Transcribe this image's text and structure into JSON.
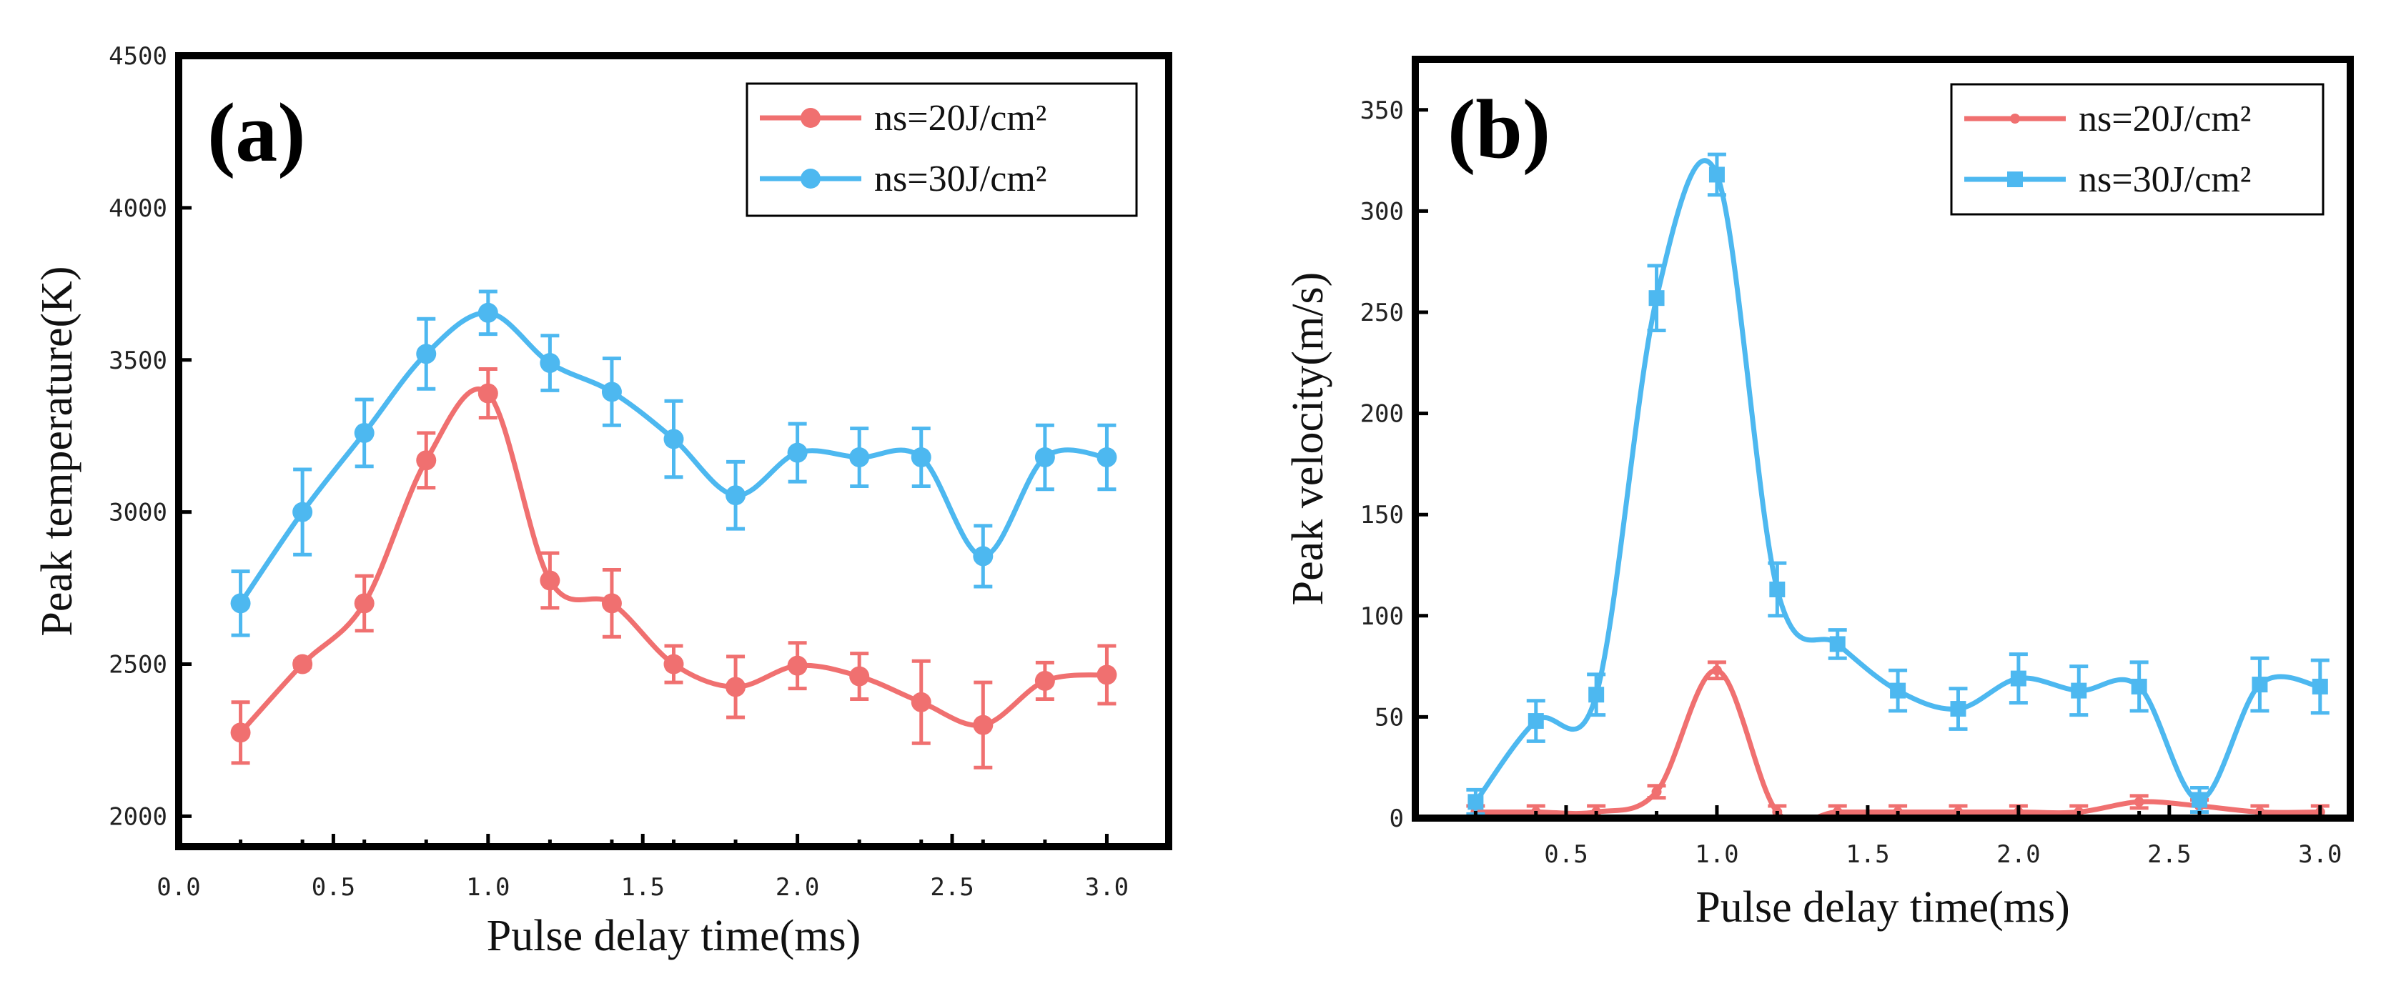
{
  "chart_data": [
    {
      "type": "line",
      "panel_label": "(a)",
      "xlabel": "Pulse delay time(ms)",
      "ylabel": "Peak temperature(K)",
      "xlim": [
        0.0,
        3.2
      ],
      "ylim": [
        1900,
        4500
      ],
      "x_ticks": [
        "0.0",
        "0.5",
        "1.0",
        "1.5",
        "2.0",
        "2.5",
        "3.0"
      ],
      "x_tick_values": [
        0.0,
        0.5,
        1.0,
        1.5,
        2.0,
        2.5,
        3.0
      ],
      "y_ticks": [
        "2000",
        "2500",
        "3000",
        "3500",
        "4000",
        "4500"
      ],
      "y_tick_values": [
        2000,
        2500,
        3000,
        3500,
        4000,
        4500
      ],
      "grid": false,
      "legend_position": "top-right",
      "x": [
        0.2,
        0.4,
        0.6,
        0.8,
        1.0,
        1.2,
        1.4,
        1.6,
        1.8,
        2.0,
        2.2,
        2.4,
        2.6,
        2.8,
        3.0
      ],
      "series": [
        {
          "name": "ns=20J/cm²",
          "color": "#f07070",
          "marker": "circle",
          "values": [
            2275,
            2500,
            2700,
            3170,
            3390,
            2775,
            2700,
            2500,
            2425,
            2495,
            2460,
            2375,
            2300,
            2445,
            2465
          ],
          "errors": [
            100,
            10,
            90,
            90,
            80,
            90,
            110,
            60,
            100,
            75,
            75,
            135,
            140,
            60,
            95
          ]
        },
        {
          "name": "ns=30J/cm²",
          "color": "#4db8f0",
          "marker": "circle",
          "values": [
            2700,
            3000,
            3260,
            3520,
            3655,
            3490,
            3395,
            3240,
            3055,
            3195,
            3180,
            3180,
            2855,
            3180,
            3180
          ],
          "errors": [
            105,
            140,
            110,
            115,
            70,
            90,
            110,
            125,
            110,
            95,
            95,
            95,
            100,
            105,
            105
          ]
        }
      ]
    },
    {
      "type": "line",
      "panel_label": "(b)",
      "xlabel": "Pulse delay time(ms)",
      "ylabel": "Peak velocity(m/s)",
      "xlim": [
        0.0,
        3.1
      ],
      "ylim": [
        0,
        375
      ],
      "x_ticks": [
        "0.5",
        "1.0",
        "1.5",
        "2.0",
        "2.5",
        "3.0"
      ],
      "x_tick_values": [
        0.5,
        1.0,
        1.5,
        2.0,
        2.5,
        3.0
      ],
      "y_ticks": [
        "0",
        "50",
        "100",
        "150",
        "200",
        "250",
        "300",
        "350"
      ],
      "y_tick_values": [
        0,
        50,
        100,
        150,
        200,
        250,
        300,
        350
      ],
      "grid": false,
      "legend_position": "top-right",
      "x": [
        0.2,
        0.4,
        0.6,
        0.8,
        1.0,
        1.2,
        1.4,
        1.6,
        1.8,
        2.0,
        2.2,
        2.4,
        2.6,
        2.8,
        3.0
      ],
      "series": [
        {
          "name": "ns=20J/cm²",
          "color": "#f07070",
          "marker": "small-circle",
          "values": [
            3,
            3,
            3,
            13,
            73,
            3,
            3,
            3,
            3,
            3,
            3,
            8,
            6,
            3,
            3
          ],
          "errors": [
            3,
            3,
            3,
            3,
            4,
            3,
            3,
            3,
            3,
            3,
            3,
            3,
            3,
            3,
            3
          ]
        },
        {
          "name": "ns=30J/cm²",
          "color": "#4db8f0",
          "marker": "square",
          "values": [
            8,
            48,
            61,
            257,
            318,
            113,
            86,
            63,
            54,
            69,
            63,
            65,
            9,
            66,
            65
          ],
          "errors": [
            6,
            10,
            10,
            16,
            10,
            13,
            7,
            10,
            10,
            12,
            12,
            12,
            6,
            13,
            13
          ]
        }
      ]
    }
  ]
}
